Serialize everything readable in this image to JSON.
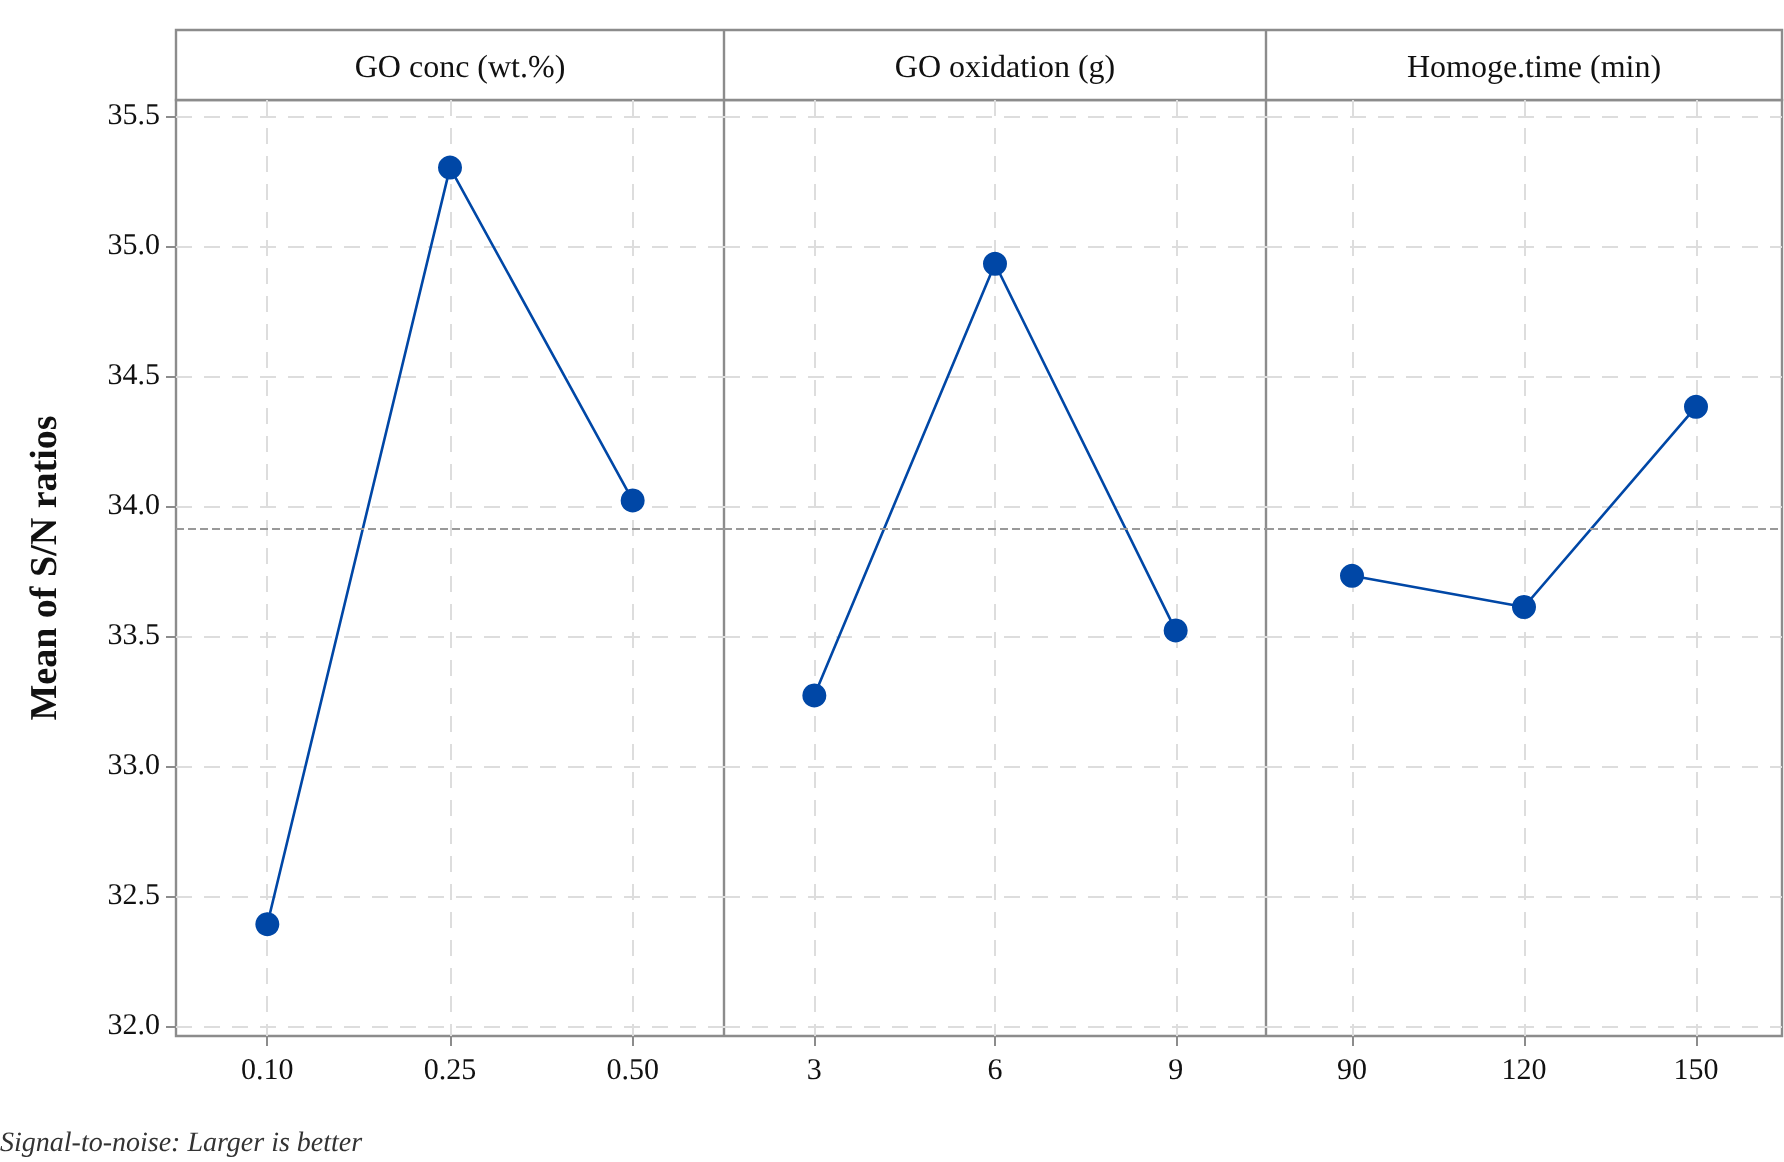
{
  "chart_data": [
    {
      "type": "line",
      "title": "GO conc (wt.%)",
      "ylabel": "Mean of S/N ratios",
      "annotations": [
        "Signal-to-noise: Larger is better"
      ],
      "categories": [
        "0.10",
        "0.25",
        "0.50"
      ],
      "series": [
        {
          "color": "#0047a6",
          "values": [
            32.39,
            35.3,
            34.02
          ]
        }
      ],
      "ylim": [
        31.96,
        35.56
      ],
      "yticks": [
        {
          "value": 32,
          "label": "32.0"
        },
        32.5,
        {
          "value": 33,
          "label": "33.0"
        },
        33.5,
        {
          "value": 34,
          "label": "34.0"
        },
        34.5,
        {
          "value": 35,
          "label": "35.0"
        },
        35.5
      ],
      "grid": true,
      "marker": "circle",
      "line_style": "solid",
      "ref_lines": [
        {
          "axis": "y",
          "value": 33.91,
          "color": "#999999",
          "line_style": "dashed"
        }
      ]
    },
    {
      "type": "line",
      "title": "GO oxidation (g)",
      "categories": [
        "3",
        "6",
        "9"
      ],
      "series": [
        {
          "color": "#0047a6",
          "values": [
            33.27,
            34.93,
            33.52
          ]
        }
      ],
      "ylim": [
        31.96,
        35.56
      ],
      "yticks": [
        32.0,
        32.5,
        33.0,
        33.5,
        34.0,
        34.5,
        35.0,
        35.5
      ],
      "tick_labels": "x",
      "grid": true,
      "marker": "circle",
      "line_style": "solid",
      "ref_lines": [
        {
          "axis": "y",
          "value": 33.91,
          "color": "#999999",
          "line_style": "dashed"
        }
      ]
    },
    {
      "type": "line",
      "title": "Homoge.time (min)",
      "categories": [
        "90",
        "120",
        "150"
      ],
      "series": [
        {
          "color": "#0047a6",
          "values": [
            33.73,
            33.61,
            34.38
          ]
        }
      ],
      "ylim": [
        31.96,
        35.56
      ],
      "yticks": [
        32.0,
        32.5,
        33.0,
        33.5,
        34.0,
        34.5,
        35.0,
        35.5
      ],
      "tick_labels": "x",
      "grid": true,
      "marker": "circle",
      "line_style": "solid",
      "ref_lines": [
        {
          "axis": "y",
          "value": 33.91,
          "color": "#999999",
          "line_style": "dashed"
        }
      ]
    }
  ]
}
